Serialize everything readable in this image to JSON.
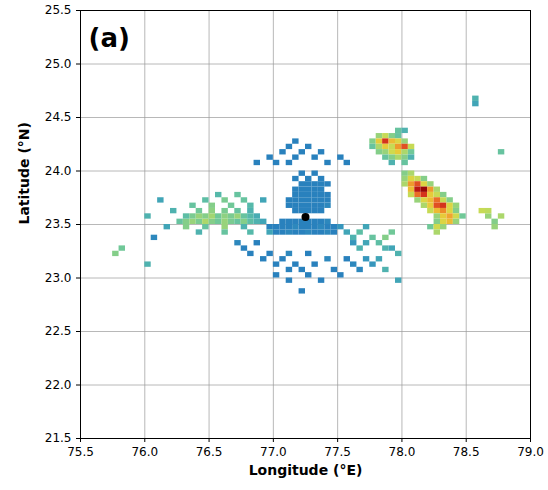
{
  "chart_data": {
    "type": "heatmap",
    "panel_label": "(a)",
    "x_label": "Longitude (°E)",
    "y_label": "Latitude (°N)",
    "xlim": [
      75.5,
      79.0
    ],
    "ylim": [
      21.5,
      25.5
    ],
    "xticks": [
      75.5,
      {
        "value": 76,
        "label": "76.0"
      },
      76.5,
      {
        "value": 77,
        "label": "77.0"
      },
      77.5,
      {
        "value": 78,
        "label": "78.0"
      },
      78.5,
      {
        "value": 79,
        "label": "79.0"
      }
    ],
    "yticks": [
      21.5,
      {
        "value": 22,
        "label": "22.0"
      },
      22.5,
      {
        "value": 23,
        "label": "23.0"
      },
      23.5,
      {
        "value": 24,
        "label": "24.0"
      },
      24.5,
      {
        "value": 25,
        "label": "25.0"
      },
      25.5
    ],
    "grid": true,
    "tick_labels": true,
    "cell_size": 0.05,
    "color_range": [
      10,
      60
    ],
    "site": [
      77.25,
      23.57
    ],
    "cells": [
      [
        77.0,
        23.4,
        15
      ],
      [
        77.05,
        23.4,
        15
      ],
      [
        77.1,
        23.4,
        16
      ],
      [
        77.15,
        23.4,
        15
      ],
      [
        77.2,
        23.4,
        15
      ],
      [
        77.25,
        23.4,
        16
      ],
      [
        77.3,
        23.4,
        15
      ],
      [
        77.35,
        23.4,
        15
      ],
      [
        77.4,
        23.4,
        16
      ],
      [
        77.45,
        23.4,
        15
      ],
      [
        76.95,
        23.45,
        15
      ],
      [
        77.0,
        23.45,
        15
      ],
      [
        77.05,
        23.45,
        15
      ],
      [
        77.1,
        23.45,
        15
      ],
      [
        77.15,
        23.45,
        16
      ],
      [
        77.2,
        23.45,
        15
      ],
      [
        77.25,
        23.45,
        15
      ],
      [
        77.3,
        23.45,
        15
      ],
      [
        77.35,
        23.45,
        16
      ],
      [
        77.4,
        23.45,
        15
      ],
      [
        77.45,
        23.45,
        15
      ],
      [
        77.5,
        23.45,
        18
      ],
      [
        77.05,
        23.5,
        15
      ],
      [
        77.1,
        23.5,
        15
      ],
      [
        77.15,
        23.5,
        15
      ],
      [
        77.2,
        23.5,
        15
      ],
      [
        77.25,
        23.5,
        15
      ],
      [
        77.3,
        23.5,
        15
      ],
      [
        77.35,
        23.5,
        15
      ],
      [
        77.4,
        23.5,
        16
      ],
      [
        77.15,
        23.6,
        15
      ],
      [
        77.2,
        23.6,
        15
      ],
      [
        77.25,
        23.6,
        15
      ],
      [
        77.3,
        23.6,
        15
      ],
      [
        77.35,
        23.6,
        15
      ],
      [
        77.1,
        23.65,
        15
      ],
      [
        77.15,
        23.65,
        15
      ],
      [
        77.2,
        23.65,
        15
      ],
      [
        77.25,
        23.65,
        15
      ],
      [
        77.3,
        23.65,
        15
      ],
      [
        77.35,
        23.65,
        15
      ],
      [
        77.4,
        23.65,
        16
      ],
      [
        77.1,
        23.7,
        15
      ],
      [
        77.15,
        23.7,
        15
      ],
      [
        77.2,
        23.7,
        15
      ],
      [
        77.25,
        23.7,
        15
      ],
      [
        77.3,
        23.7,
        15
      ],
      [
        77.35,
        23.7,
        15
      ],
      [
        77.4,
        23.7,
        15
      ],
      [
        77.15,
        23.75,
        15
      ],
      [
        77.2,
        23.75,
        15
      ],
      [
        77.25,
        23.75,
        15
      ],
      [
        77.3,
        23.75,
        15
      ],
      [
        77.35,
        23.75,
        15
      ],
      [
        77.4,
        23.75,
        15
      ],
      [
        77.15,
        23.8,
        15
      ],
      [
        77.2,
        23.8,
        15
      ],
      [
        77.25,
        23.8,
        15
      ],
      [
        77.3,
        23.8,
        15
      ],
      [
        77.35,
        23.8,
        15
      ],
      [
        77.2,
        23.85,
        15
      ],
      [
        77.25,
        23.85,
        15
      ],
      [
        77.3,
        23.85,
        15
      ],
      [
        77.35,
        23.85,
        15
      ],
      [
        77.4,
        23.85,
        15
      ],
      [
        77.15,
        23.9,
        15
      ],
      [
        77.25,
        23.9,
        15
      ],
      [
        77.35,
        23.9,
        15
      ],
      [
        77.2,
        23.95,
        15
      ],
      [
        77.3,
        23.95,
        15
      ],
      [
        76.85,
        24.05,
        15
      ],
      [
        77.0,
        24.05,
        15
      ],
      [
        77.1,
        24.05,
        15
      ],
      [
        77.4,
        24.05,
        15
      ],
      [
        77.55,
        24.05,
        15
      ],
      [
        76.95,
        24.1,
        15
      ],
      [
        77.15,
        24.1,
        15
      ],
      [
        77.3,
        24.1,
        15
      ],
      [
        77.5,
        24.1,
        15
      ],
      [
        77.05,
        24.15,
        15
      ],
      [
        77.2,
        24.15,
        15
      ],
      [
        77.35,
        24.15,
        15
      ],
      [
        77.1,
        24.2,
        15
      ],
      [
        77.25,
        24.2,
        15
      ],
      [
        77.15,
        24.25,
        15
      ],
      [
        76.3,
        23.45,
        28
      ],
      [
        76.45,
        23.45,
        25
      ],
      [
        76.6,
        23.45,
        30
      ],
      [
        76.75,
        23.45,
        22
      ],
      [
        76.25,
        23.5,
        25
      ],
      [
        76.3,
        23.5,
        28
      ],
      [
        76.35,
        23.5,
        30
      ],
      [
        76.4,
        23.5,
        27
      ],
      [
        76.45,
        23.5,
        32
      ],
      [
        76.5,
        23.5,
        28
      ],
      [
        76.55,
        23.5,
        26
      ],
      [
        76.6,
        23.5,
        30
      ],
      [
        76.65,
        23.5,
        27
      ],
      [
        76.7,
        23.5,
        25
      ],
      [
        76.75,
        23.5,
        28
      ],
      [
        76.8,
        23.5,
        24
      ],
      [
        76.85,
        23.5,
        22
      ],
      [
        76.9,
        23.5,
        20
      ],
      [
        76.3,
        23.55,
        24
      ],
      [
        76.35,
        23.55,
        27
      ],
      [
        76.4,
        23.55,
        30
      ],
      [
        76.45,
        23.55,
        28
      ],
      [
        76.5,
        23.55,
        31
      ],
      [
        76.55,
        23.55,
        26
      ],
      [
        76.6,
        23.55,
        29
      ],
      [
        76.65,
        23.55,
        27
      ],
      [
        76.7,
        23.55,
        30
      ],
      [
        76.75,
        23.55,
        25
      ],
      [
        76.8,
        23.55,
        23
      ],
      [
        76.85,
        23.55,
        21
      ],
      [
        76.4,
        23.6,
        26
      ],
      [
        76.5,
        23.6,
        29
      ],
      [
        76.6,
        23.6,
        27
      ],
      [
        76.7,
        23.6,
        25
      ],
      [
        76.8,
        23.6,
        22
      ],
      [
        76.35,
        23.65,
        25
      ],
      [
        76.5,
        23.65,
        28
      ],
      [
        76.65,
        23.65,
        26
      ],
      [
        76.8,
        23.65,
        23
      ],
      [
        76.45,
        23.7,
        24
      ],
      [
        76.6,
        23.7,
        27
      ],
      [
        76.75,
        23.7,
        25
      ],
      [
        76.9,
        23.7,
        20
      ],
      [
        76.55,
        23.75,
        23
      ],
      [
        76.7,
        23.75,
        25
      ],
      [
        76.4,
        23.4,
        22
      ],
      [
        76.6,
        23.4,
        25
      ],
      [
        76.8,
        23.4,
        23
      ],
      [
        76.95,
        23.4,
        20
      ],
      [
        76.2,
        23.6,
        22
      ],
      [
        76.15,
        23.45,
        20
      ],
      [
        76.05,
        23.35,
        16
      ],
      [
        76.0,
        23.55,
        22
      ],
      [
        76.1,
        23.7,
        20
      ],
      [
        77.55,
        23.4,
        20
      ],
      [
        77.6,
        23.35,
        22
      ],
      [
        77.65,
        23.4,
        24
      ],
      [
        77.7,
        23.45,
        20
      ],
      [
        76.8,
        23.2,
        15
      ],
      [
        76.95,
        23.2,
        15
      ],
      [
        77.1,
        23.2,
        16
      ],
      [
        77.25,
        23.2,
        15
      ],
      [
        76.9,
        23.15,
        15
      ],
      [
        77.05,
        23.15,
        15
      ],
      [
        77.4,
        23.15,
        16
      ],
      [
        77.55,
        23.15,
        15
      ],
      [
        77.7,
        23.15,
        18
      ],
      [
        77.0,
        23.1,
        15
      ],
      [
        77.15,
        23.1,
        15
      ],
      [
        77.3,
        23.1,
        15
      ],
      [
        77.6,
        23.1,
        16
      ],
      [
        77.75,
        23.1,
        18
      ],
      [
        77.1,
        23.05,
        15
      ],
      [
        77.2,
        23.05,
        15
      ],
      [
        77.45,
        23.05,
        15
      ],
      [
        77.65,
        23.05,
        16
      ],
      [
        77.0,
        23.0,
        15
      ],
      [
        77.25,
        23.0,
        15
      ],
      [
        77.5,
        23.0,
        15
      ],
      [
        77.1,
        22.95,
        15
      ],
      [
        77.35,
        22.95,
        15
      ],
      [
        77.2,
        22.85,
        15
      ],
      [
        76.7,
        23.3,
        16
      ],
      [
        76.85,
        23.3,
        15
      ],
      [
        77.6,
        23.3,
        18
      ],
      [
        77.7,
        23.3,
        20
      ],
      [
        77.8,
        23.3,
        24
      ],
      [
        76.75,
        23.25,
        15
      ],
      [
        77.85,
        23.25,
        22
      ],
      [
        77.9,
        23.25,
        20
      ],
      [
        77.75,
        23.35,
        25
      ],
      [
        77.85,
        23.35,
        28
      ],
      [
        77.9,
        23.4,
        26
      ],
      [
        77.95,
        23.2,
        22
      ],
      [
        77.65,
        23.25,
        22
      ],
      [
        77.8,
        23.15,
        20
      ],
      [
        77.85,
        23.05,
        22
      ],
      [
        77.95,
        22.95,
        20
      ],
      [
        77.8,
        24.3,
        30
      ],
      [
        77.85,
        24.3,
        35
      ],
      [
        77.9,
        24.3,
        28
      ],
      [
        77.95,
        24.3,
        25
      ],
      [
        77.75,
        24.25,
        28
      ],
      [
        77.8,
        24.25,
        40
      ],
      [
        77.85,
        24.25,
        52
      ],
      [
        77.9,
        24.25,
        42
      ],
      [
        77.95,
        24.25,
        38
      ],
      [
        78.0,
        24.25,
        30
      ],
      [
        77.75,
        24.2,
        25
      ],
      [
        77.8,
        24.2,
        32
      ],
      [
        77.85,
        24.2,
        40
      ],
      [
        77.9,
        24.2,
        35
      ],
      [
        77.95,
        24.2,
        45
      ],
      [
        78.0,
        24.2,
        50
      ],
      [
        78.05,
        24.2,
        35
      ],
      [
        77.8,
        24.15,
        28
      ],
      [
        77.85,
        24.15,
        30
      ],
      [
        77.9,
        24.15,
        36
      ],
      [
        77.95,
        24.15,
        40
      ],
      [
        78.0,
        24.15,
        32
      ],
      [
        78.05,
        24.15,
        26
      ],
      [
        77.85,
        24.1,
        25
      ],
      [
        77.9,
        24.1,
        28
      ],
      [
        77.95,
        24.1,
        32
      ],
      [
        78.0,
        24.1,
        28
      ],
      [
        78.05,
        24.1,
        22
      ],
      [
        77.9,
        24.05,
        22
      ],
      [
        78.0,
        24.05,
        25
      ],
      [
        77.95,
        24.35,
        25
      ],
      [
        78.0,
        24.35,
        22
      ],
      [
        78.0,
        23.95,
        28
      ],
      [
        78.05,
        23.95,
        32
      ],
      [
        78.0,
        23.9,
        30
      ],
      [
        78.05,
        23.9,
        38
      ],
      [
        78.1,
        23.9,
        35
      ],
      [
        78.15,
        23.9,
        28
      ],
      [
        78.0,
        23.85,
        32
      ],
      [
        78.05,
        23.85,
        45
      ],
      [
        78.1,
        23.85,
        50
      ],
      [
        78.15,
        23.85,
        38
      ],
      [
        78.2,
        23.85,
        30
      ],
      [
        78.05,
        23.8,
        42
      ],
      [
        78.1,
        23.8,
        55
      ],
      [
        78.15,
        23.8,
        58
      ],
      [
        78.2,
        23.8,
        45
      ],
      [
        78.25,
        23.8,
        32
      ],
      [
        78.05,
        23.75,
        35
      ],
      [
        78.1,
        23.75,
        48
      ],
      [
        78.15,
        23.75,
        52
      ],
      [
        78.2,
        23.75,
        40
      ],
      [
        78.25,
        23.75,
        35
      ],
      [
        78.3,
        23.75,
        28
      ],
      [
        78.1,
        23.7,
        30
      ],
      [
        78.15,
        23.7,
        38
      ],
      [
        78.2,
        23.7,
        42
      ],
      [
        78.25,
        23.7,
        48
      ],
      [
        78.3,
        23.7,
        35
      ],
      [
        78.35,
        23.7,
        28
      ],
      [
        78.15,
        23.65,
        32
      ],
      [
        78.2,
        23.65,
        40
      ],
      [
        78.25,
        23.65,
        50
      ],
      [
        78.3,
        23.65,
        52
      ],
      [
        78.35,
        23.65,
        38
      ],
      [
        78.4,
        23.65,
        30
      ],
      [
        78.2,
        23.6,
        35
      ],
      [
        78.25,
        23.6,
        42
      ],
      [
        78.3,
        23.6,
        46
      ],
      [
        78.35,
        23.6,
        38
      ],
      [
        78.4,
        23.6,
        28
      ],
      [
        78.25,
        23.55,
        30
      ],
      [
        78.3,
        23.55,
        40
      ],
      [
        78.35,
        23.55,
        44
      ],
      [
        78.4,
        23.55,
        36
      ],
      [
        78.45,
        23.55,
        26
      ],
      [
        78.25,
        23.5,
        28
      ],
      [
        78.3,
        23.5,
        38
      ],
      [
        78.35,
        23.5,
        42
      ],
      [
        78.4,
        23.5,
        30
      ],
      [
        78.2,
        23.45,
        26
      ],
      [
        78.25,
        23.45,
        36
      ],
      [
        78.3,
        23.45,
        30
      ],
      [
        78.25,
        23.4,
        32
      ],
      [
        78.6,
        23.6,
        35
      ],
      [
        78.65,
        23.55,
        30
      ],
      [
        78.7,
        23.5,
        28
      ],
      [
        78.75,
        23.55,
        32
      ],
      [
        78.7,
        23.45,
        30
      ],
      [
        78.65,
        23.6,
        34
      ],
      [
        78.75,
        24.15,
        25
      ],
      [
        78.55,
        24.6,
        20
      ],
      [
        78.55,
        24.65,
        22
      ],
      [
        75.75,
        23.2,
        28
      ],
      [
        75.8,
        23.25,
        26
      ],
      [
        76.0,
        23.1,
        22
      ]
    ]
  }
}
